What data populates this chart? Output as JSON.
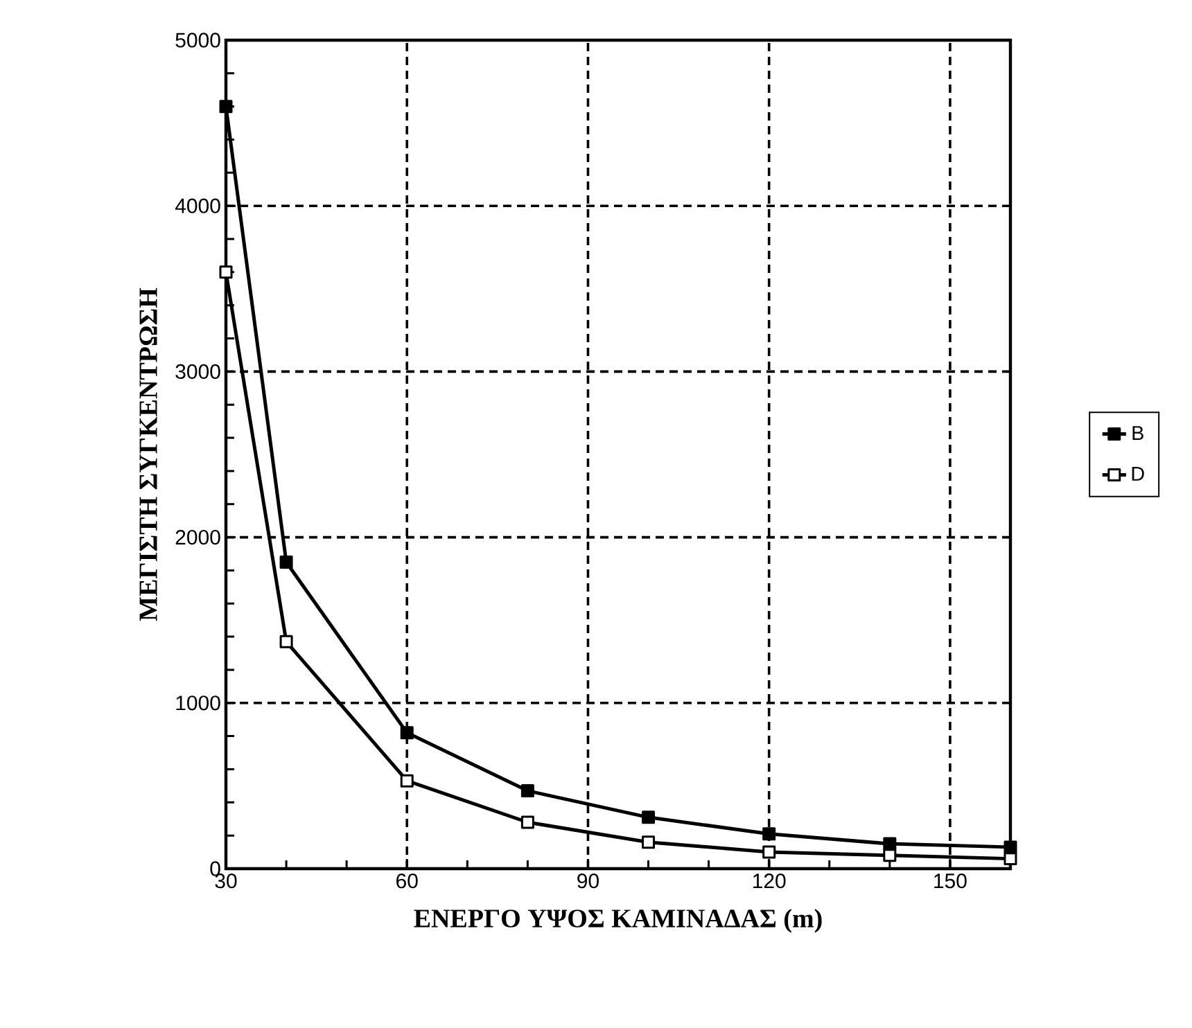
{
  "chart_data": {
    "type": "line",
    "xlabel": "ΕΝΕΡΓΟ ΥΨΟΣ ΚΑΜΙΝΑΔΑΣ (m)",
    "ylabel": "ΜΕΓΙΣΤΗ ΣΥΓΚΕΝΤΡΩΣΗ",
    "x": [
      30,
      40,
      60,
      80,
      100,
      120,
      140,
      160
    ],
    "series": [
      {
        "name": "B",
        "color": "#000000",
        "values": [
          4600,
          1850,
          820,
          470,
          310,
          210,
          150,
          130
        ]
      },
      {
        "name": "D",
        "color": "#000000",
        "values": [
          3600,
          1370,
          530,
          280,
          160,
          100,
          80,
          60
        ]
      }
    ],
    "xlim": [
      30,
      160
    ],
    "xticks": [
      30,
      60,
      90,
      120,
      150
    ],
    "ylim": [
      0,
      5000
    ],
    "yticks": [
      0,
      1000,
      2000,
      3000,
      4000,
      5000
    ],
    "grid": true,
    "legend": "right",
    "marker": "square",
    "line_style": "solid"
  }
}
